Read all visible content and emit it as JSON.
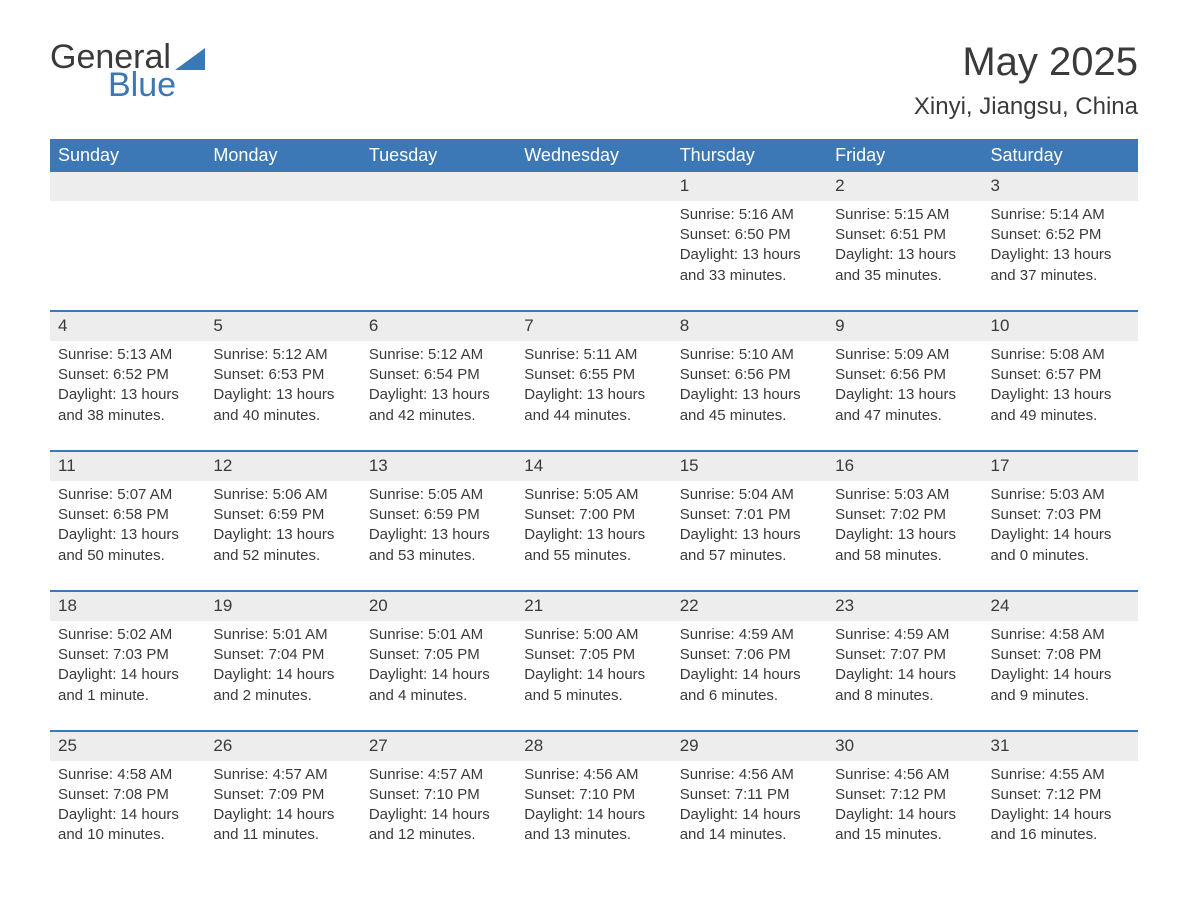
{
  "logo": {
    "text1": "General",
    "text2": "Blue"
  },
  "title": "May 2025",
  "location": "Xinyi, Jiangsu, China",
  "brand_color": "#3b78b5",
  "header_bg": "#3b78b5",
  "header_text_color": "#ffffff",
  "daynum_bg": "#ededed",
  "text_color": "#3a3a3a",
  "background_color": "#ffffff",
  "font_family": "Arial, Helvetica, sans-serif",
  "day_headers": [
    "Sunday",
    "Monday",
    "Tuesday",
    "Wednesday",
    "Thursday",
    "Friday",
    "Saturday"
  ],
  "weeks": [
    [
      null,
      null,
      null,
      null,
      {
        "n": "1",
        "sunrise": "5:16 AM",
        "sunset": "6:50 PM",
        "daylight": "13 hours and 33 minutes."
      },
      {
        "n": "2",
        "sunrise": "5:15 AM",
        "sunset": "6:51 PM",
        "daylight": "13 hours and 35 minutes."
      },
      {
        "n": "3",
        "sunrise": "5:14 AM",
        "sunset": "6:52 PM",
        "daylight": "13 hours and 37 minutes."
      }
    ],
    [
      {
        "n": "4",
        "sunrise": "5:13 AM",
        "sunset": "6:52 PM",
        "daylight": "13 hours and 38 minutes."
      },
      {
        "n": "5",
        "sunrise": "5:12 AM",
        "sunset": "6:53 PM",
        "daylight": "13 hours and 40 minutes."
      },
      {
        "n": "6",
        "sunrise": "5:12 AM",
        "sunset": "6:54 PM",
        "daylight": "13 hours and 42 minutes."
      },
      {
        "n": "7",
        "sunrise": "5:11 AM",
        "sunset": "6:55 PM",
        "daylight": "13 hours and 44 minutes."
      },
      {
        "n": "8",
        "sunrise": "5:10 AM",
        "sunset": "6:56 PM",
        "daylight": "13 hours and 45 minutes."
      },
      {
        "n": "9",
        "sunrise": "5:09 AM",
        "sunset": "6:56 PM",
        "daylight": "13 hours and 47 minutes."
      },
      {
        "n": "10",
        "sunrise": "5:08 AM",
        "sunset": "6:57 PM",
        "daylight": "13 hours and 49 minutes."
      }
    ],
    [
      {
        "n": "11",
        "sunrise": "5:07 AM",
        "sunset": "6:58 PM",
        "daylight": "13 hours and 50 minutes."
      },
      {
        "n": "12",
        "sunrise": "5:06 AM",
        "sunset": "6:59 PM",
        "daylight": "13 hours and 52 minutes."
      },
      {
        "n": "13",
        "sunrise": "5:05 AM",
        "sunset": "6:59 PM",
        "daylight": "13 hours and 53 minutes."
      },
      {
        "n": "14",
        "sunrise": "5:05 AM",
        "sunset": "7:00 PM",
        "daylight": "13 hours and 55 minutes."
      },
      {
        "n": "15",
        "sunrise": "5:04 AM",
        "sunset": "7:01 PM",
        "daylight": "13 hours and 57 minutes."
      },
      {
        "n": "16",
        "sunrise": "5:03 AM",
        "sunset": "7:02 PM",
        "daylight": "13 hours and 58 minutes."
      },
      {
        "n": "17",
        "sunrise": "5:03 AM",
        "sunset": "7:03 PM",
        "daylight": "14 hours and 0 minutes."
      }
    ],
    [
      {
        "n": "18",
        "sunrise": "5:02 AM",
        "sunset": "7:03 PM",
        "daylight": "14 hours and 1 minute."
      },
      {
        "n": "19",
        "sunrise": "5:01 AM",
        "sunset": "7:04 PM",
        "daylight": "14 hours and 2 minutes."
      },
      {
        "n": "20",
        "sunrise": "5:01 AM",
        "sunset": "7:05 PM",
        "daylight": "14 hours and 4 minutes."
      },
      {
        "n": "21",
        "sunrise": "5:00 AM",
        "sunset": "7:05 PM",
        "daylight": "14 hours and 5 minutes."
      },
      {
        "n": "22",
        "sunrise": "4:59 AM",
        "sunset": "7:06 PM",
        "daylight": "14 hours and 6 minutes."
      },
      {
        "n": "23",
        "sunrise": "4:59 AM",
        "sunset": "7:07 PM",
        "daylight": "14 hours and 8 minutes."
      },
      {
        "n": "24",
        "sunrise": "4:58 AM",
        "sunset": "7:08 PM",
        "daylight": "14 hours and 9 minutes."
      }
    ],
    [
      {
        "n": "25",
        "sunrise": "4:58 AM",
        "sunset": "7:08 PM",
        "daylight": "14 hours and 10 minutes."
      },
      {
        "n": "26",
        "sunrise": "4:57 AM",
        "sunset": "7:09 PM",
        "daylight": "14 hours and 11 minutes."
      },
      {
        "n": "27",
        "sunrise": "4:57 AM",
        "sunset": "7:10 PM",
        "daylight": "14 hours and 12 minutes."
      },
      {
        "n": "28",
        "sunrise": "4:56 AM",
        "sunset": "7:10 PM",
        "daylight": "14 hours and 13 minutes."
      },
      {
        "n": "29",
        "sunrise": "4:56 AM",
        "sunset": "7:11 PM",
        "daylight": "14 hours and 14 minutes."
      },
      {
        "n": "30",
        "sunrise": "4:56 AM",
        "sunset": "7:12 PM",
        "daylight": "14 hours and 15 minutes."
      },
      {
        "n": "31",
        "sunrise": "4:55 AM",
        "sunset": "7:12 PM",
        "daylight": "14 hours and 16 minutes."
      }
    ]
  ],
  "labels": {
    "sunrise": "Sunrise:",
    "sunset": "Sunset:",
    "daylight": "Daylight:"
  }
}
